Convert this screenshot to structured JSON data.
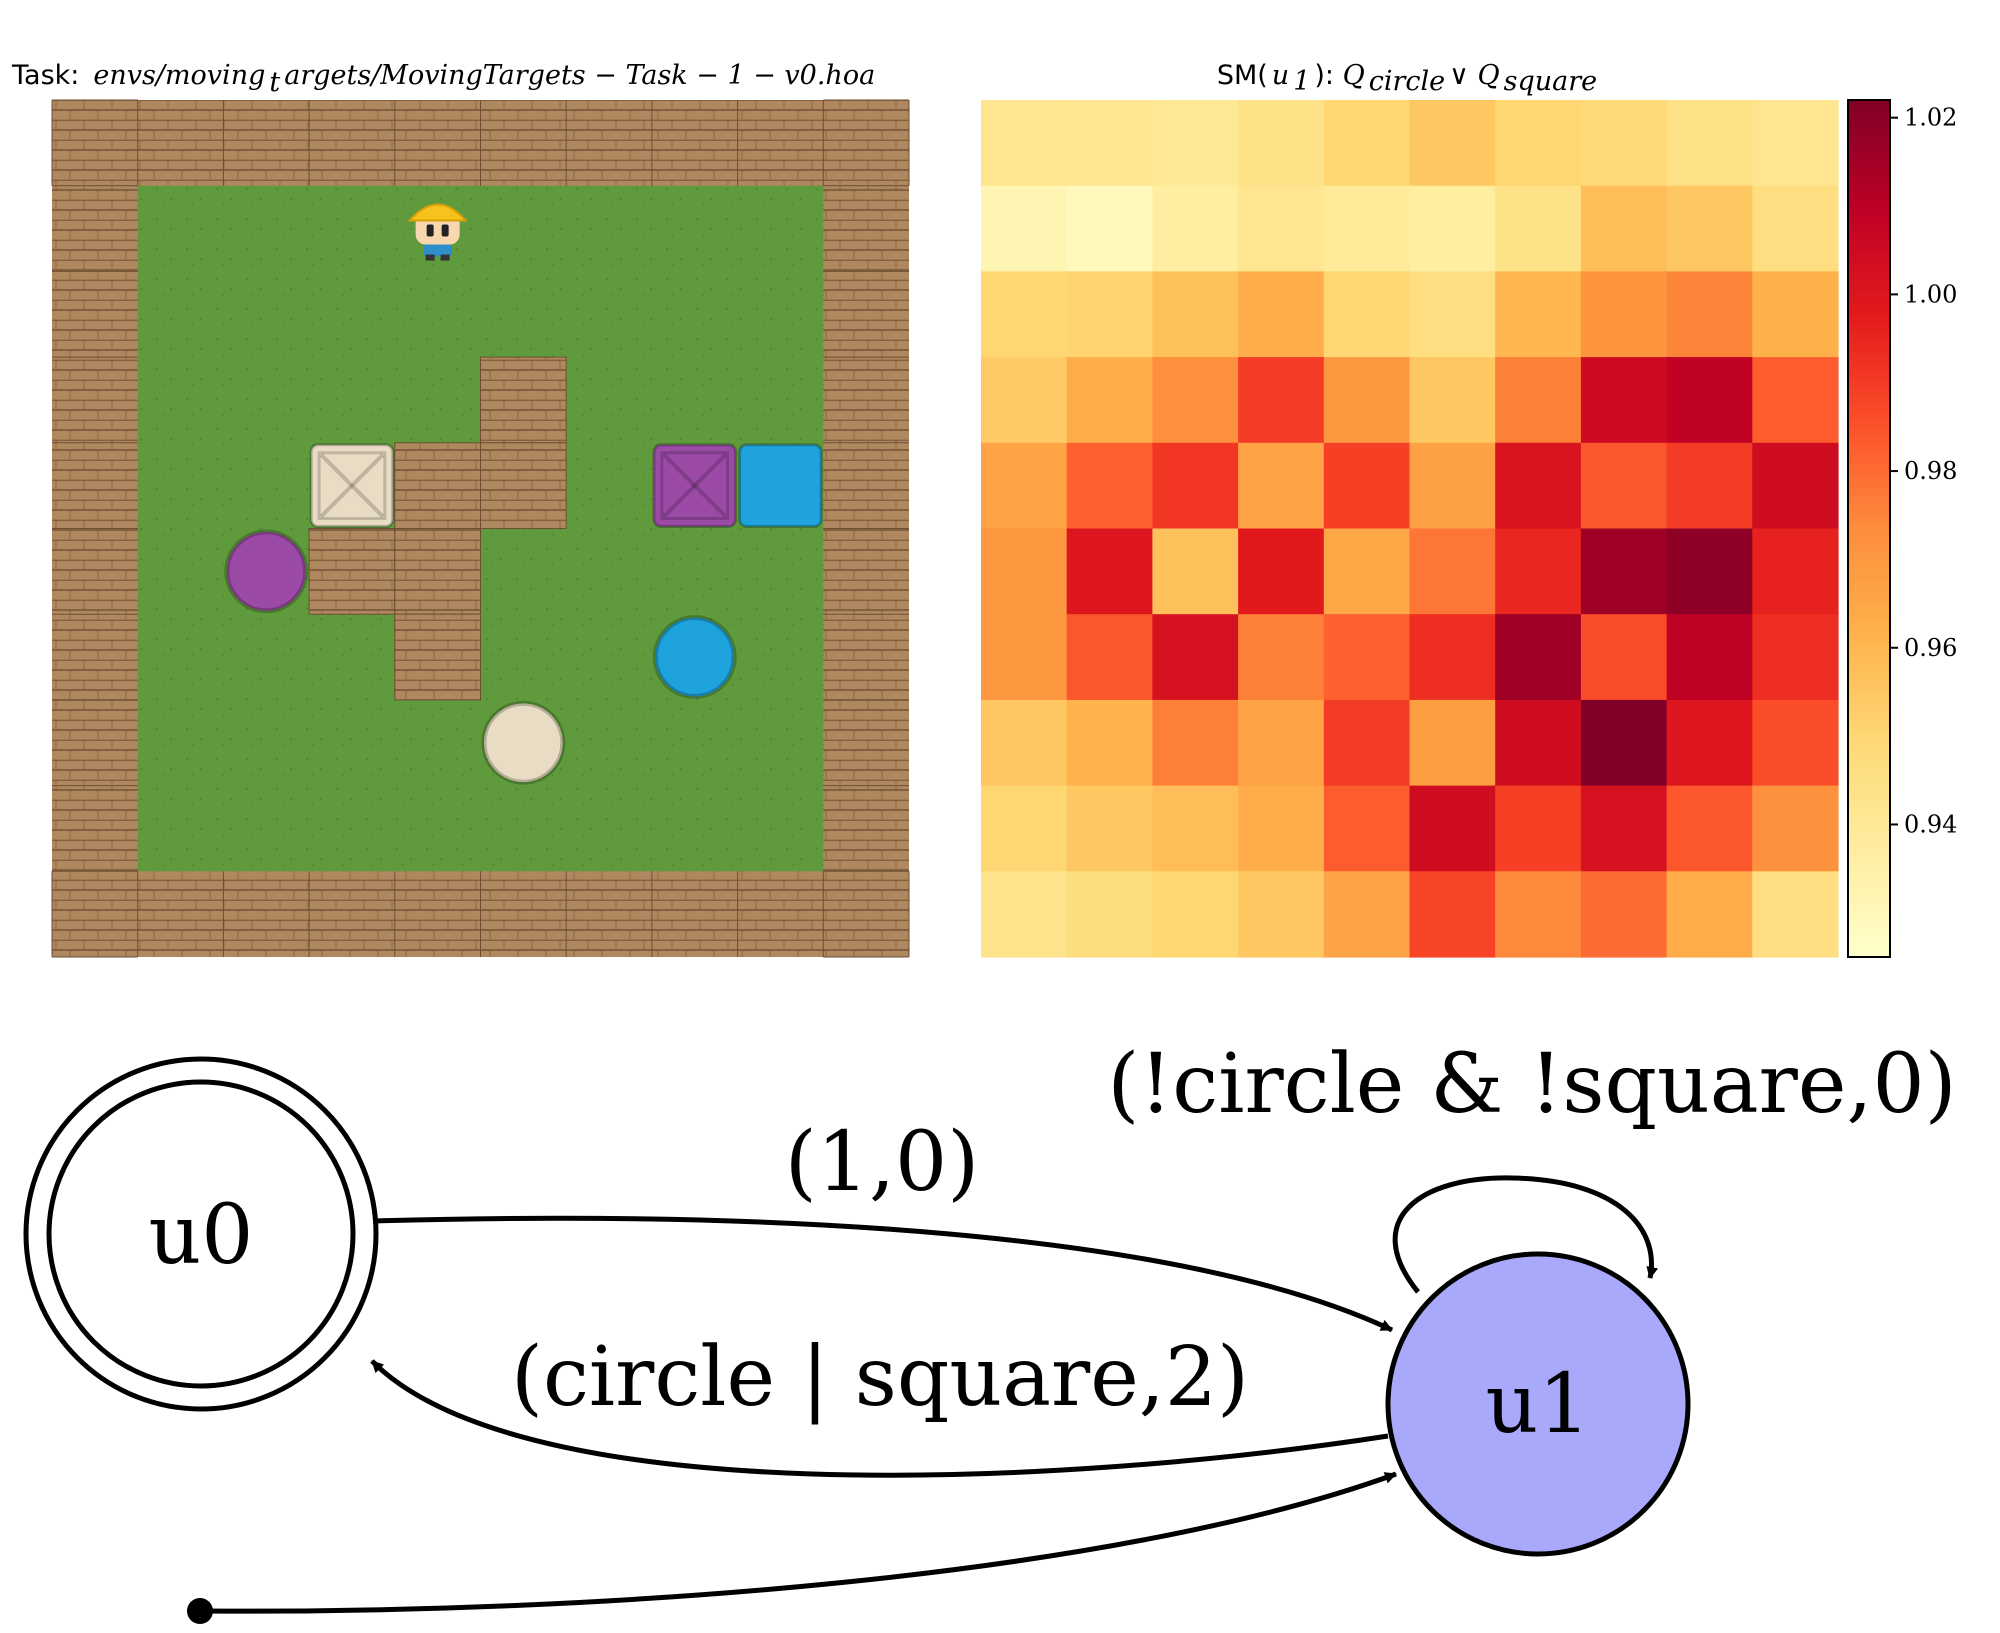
{
  "env_panel": {
    "title_prefix": "Task:",
    "title_path": "envs/moving",
    "title_subscript": "t",
    "title_rest": "argets/MovingTargets − Task − 1 − v0.hoa",
    "grid_size": 10,
    "wall_color": "#a07850",
    "grass_color": "#5b9a3a",
    "objects": [
      {
        "kind": "agent",
        "name": "agent-icon",
        "col": 4,
        "row": 1
      },
      {
        "kind": "square",
        "color": "#e8dcc4",
        "col": 3,
        "row": 4
      },
      {
        "kind": "square",
        "color": "#9b4aa6",
        "col": 7,
        "row": 4
      },
      {
        "kind": "square",
        "color": "#1ea3dc",
        "col": 8,
        "row": 4
      },
      {
        "kind": "circle",
        "color": "#9b4aa6",
        "col": 2,
        "row": 5
      },
      {
        "kind": "circle",
        "color": "#1ea3dc",
        "col": 7,
        "row": 6
      },
      {
        "kind": "circle",
        "color": "#e8dcc4",
        "col": 5,
        "row": 7
      }
    ],
    "inner_walls": [
      [
        5,
        3
      ],
      [
        4,
        4
      ],
      [
        5,
        4
      ],
      [
        3,
        5
      ],
      [
        4,
        5
      ],
      [
        4,
        6
      ]
    ]
  },
  "chart_data": {
    "type": "heatmap",
    "title_prefix": "SM(",
    "title_var": "u",
    "title_var_sub": "1",
    "title_mid": "): ",
    "title_q1": "Q",
    "title_q1_sub": "circle",
    "title_or": " ∨ ",
    "title_q2": "Q",
    "title_q2_sub": "square",
    "colormap": "YlOrRd",
    "vmin": 0.925,
    "vmax": 1.022,
    "colorbar_ticks": [
      "1.02",
      "1.00",
      "0.98",
      "0.96",
      "0.94"
    ],
    "colorbar_tick_values": [
      1.02,
      1.0,
      0.98,
      0.96,
      0.94
    ],
    "values": [
      [
        0.942,
        0.942,
        0.94,
        0.944,
        0.95,
        0.955,
        0.95,
        0.949,
        0.945,
        0.942
      ],
      [
        0.932,
        0.929,
        0.937,
        0.942,
        0.939,
        0.937,
        0.944,
        0.958,
        0.955,
        0.946
      ],
      [
        0.95,
        0.951,
        0.957,
        0.963,
        0.95,
        0.946,
        0.96,
        0.971,
        0.975,
        0.962
      ],
      [
        0.954,
        0.963,
        0.973,
        0.99,
        0.97,
        0.955,
        0.976,
        1.005,
        1.009,
        0.983
      ],
      [
        0.966,
        0.982,
        0.991,
        0.966,
        0.989,
        0.967,
        1.001,
        0.984,
        0.99,
        1.004
      ],
      [
        0.97,
        1.0,
        0.957,
        0.998,
        0.965,
        0.978,
        0.995,
        1.016,
        1.019,
        0.996
      ],
      [
        0.97,
        0.984,
        1.002,
        0.976,
        0.982,
        0.993,
        1.016,
        0.986,
        1.009,
        0.993
      ],
      [
        0.955,
        0.961,
        0.976,
        0.966,
        0.99,
        0.968,
        1.004,
        1.022,
        1.0,
        0.986
      ],
      [
        0.95,
        0.955,
        0.958,
        0.963,
        0.983,
        1.004,
        0.989,
        1.002,
        0.984,
        0.972
      ],
      [
        0.943,
        0.947,
        0.95,
        0.955,
        0.966,
        0.988,
        0.974,
        0.98,
        0.963,
        0.946
      ]
    ]
  },
  "fsm": {
    "nodes": [
      {
        "id": "u0",
        "label": "u0",
        "accepting": true,
        "fill": "#ffffff"
      },
      {
        "id": "u1",
        "label": "u1",
        "accepting": false,
        "fill": "#a9a9fb"
      }
    ],
    "edges": [
      {
        "from": "u0",
        "to": "u1",
        "label": "(1,0)"
      },
      {
        "from": "u1",
        "to": "u0",
        "label": "(circle | square,2)"
      },
      {
        "from": "u1",
        "to": "u1",
        "label": "(!circle & !square,0)"
      },
      {
        "from": "start",
        "to": "u1",
        "label": ""
      }
    ]
  }
}
